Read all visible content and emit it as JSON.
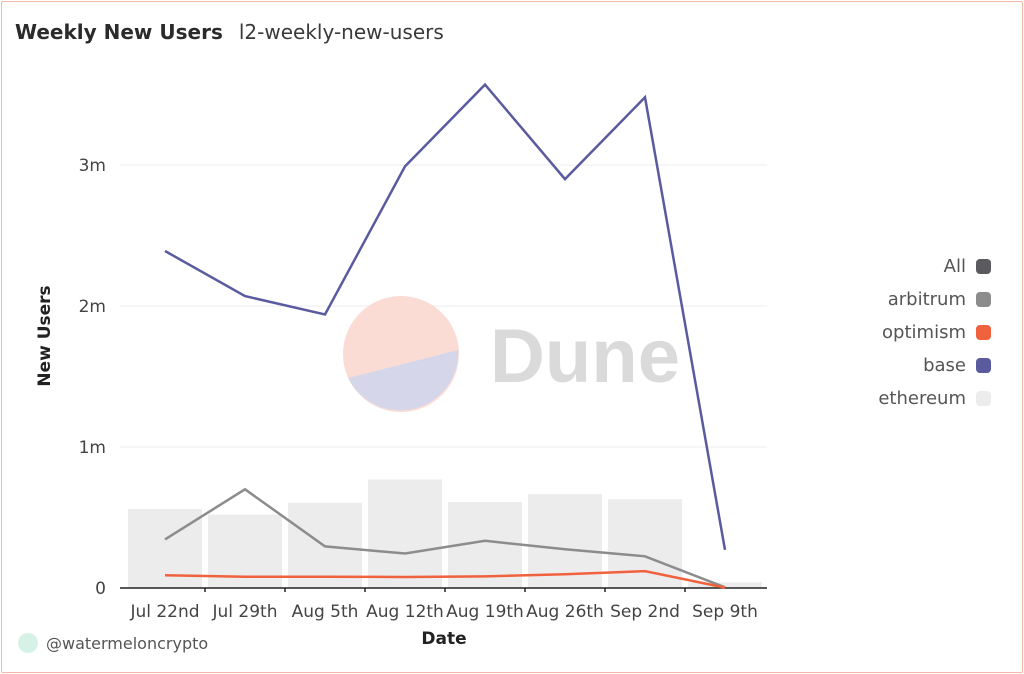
{
  "header": {
    "title": "Weekly New Users",
    "subtitle": "l2-weekly-new-users"
  },
  "watermark": {
    "text": "Dune"
  },
  "footer": {
    "author": "@watermeloncrypto"
  },
  "legend": {
    "items": [
      {
        "label": "All",
        "color": "#5a5a5f"
      },
      {
        "label": "arbitrum",
        "color": "#8c8c8c"
      },
      {
        "label": "optimism",
        "color": "#f0613d"
      },
      {
        "label": "base",
        "color": "#5a5b9f"
      },
      {
        "label": "ethereum",
        "color": "#ececec"
      }
    ]
  },
  "chart_data": {
    "type": "line",
    "xlabel": "Date",
    "ylabel": "New Users",
    "categories": [
      "Jul 22nd",
      "Jul 29th",
      "Aug 5th",
      "Aug 12th",
      "Aug 19th",
      "Aug 26th",
      "Sep 2nd",
      "Sep 9th"
    ],
    "y_ticks": [
      0,
      1000000,
      2000000,
      3000000
    ],
    "y_tick_labels": [
      "0",
      "1m",
      "2m",
      "3m"
    ],
    "ylim": [
      0,
      3700000
    ],
    "grid": true,
    "legend_position": "right",
    "series": [
      {
        "name": "ethereum",
        "type": "bar",
        "color": "#ececec",
        "values": [
          560000,
          520000,
          605000,
          770000,
          610000,
          665000,
          630000,
          40000
        ]
      },
      {
        "name": "base",
        "type": "line",
        "color": "#5a5b9f",
        "values": [
          2390000,
          2070000,
          1940000,
          2990000,
          3570000,
          2900000,
          3480000,
          270000
        ]
      },
      {
        "name": "arbitrum",
        "type": "line",
        "color": "#8c8c8c",
        "values": [
          345000,
          700000,
          295000,
          245000,
          335000,
          275000,
          225000,
          5000
        ]
      },
      {
        "name": "optimism",
        "type": "line",
        "color": "#f0613d",
        "values": [
          90000,
          80000,
          80000,
          78000,
          82000,
          98000,
          120000,
          3000
        ]
      }
    ]
  }
}
